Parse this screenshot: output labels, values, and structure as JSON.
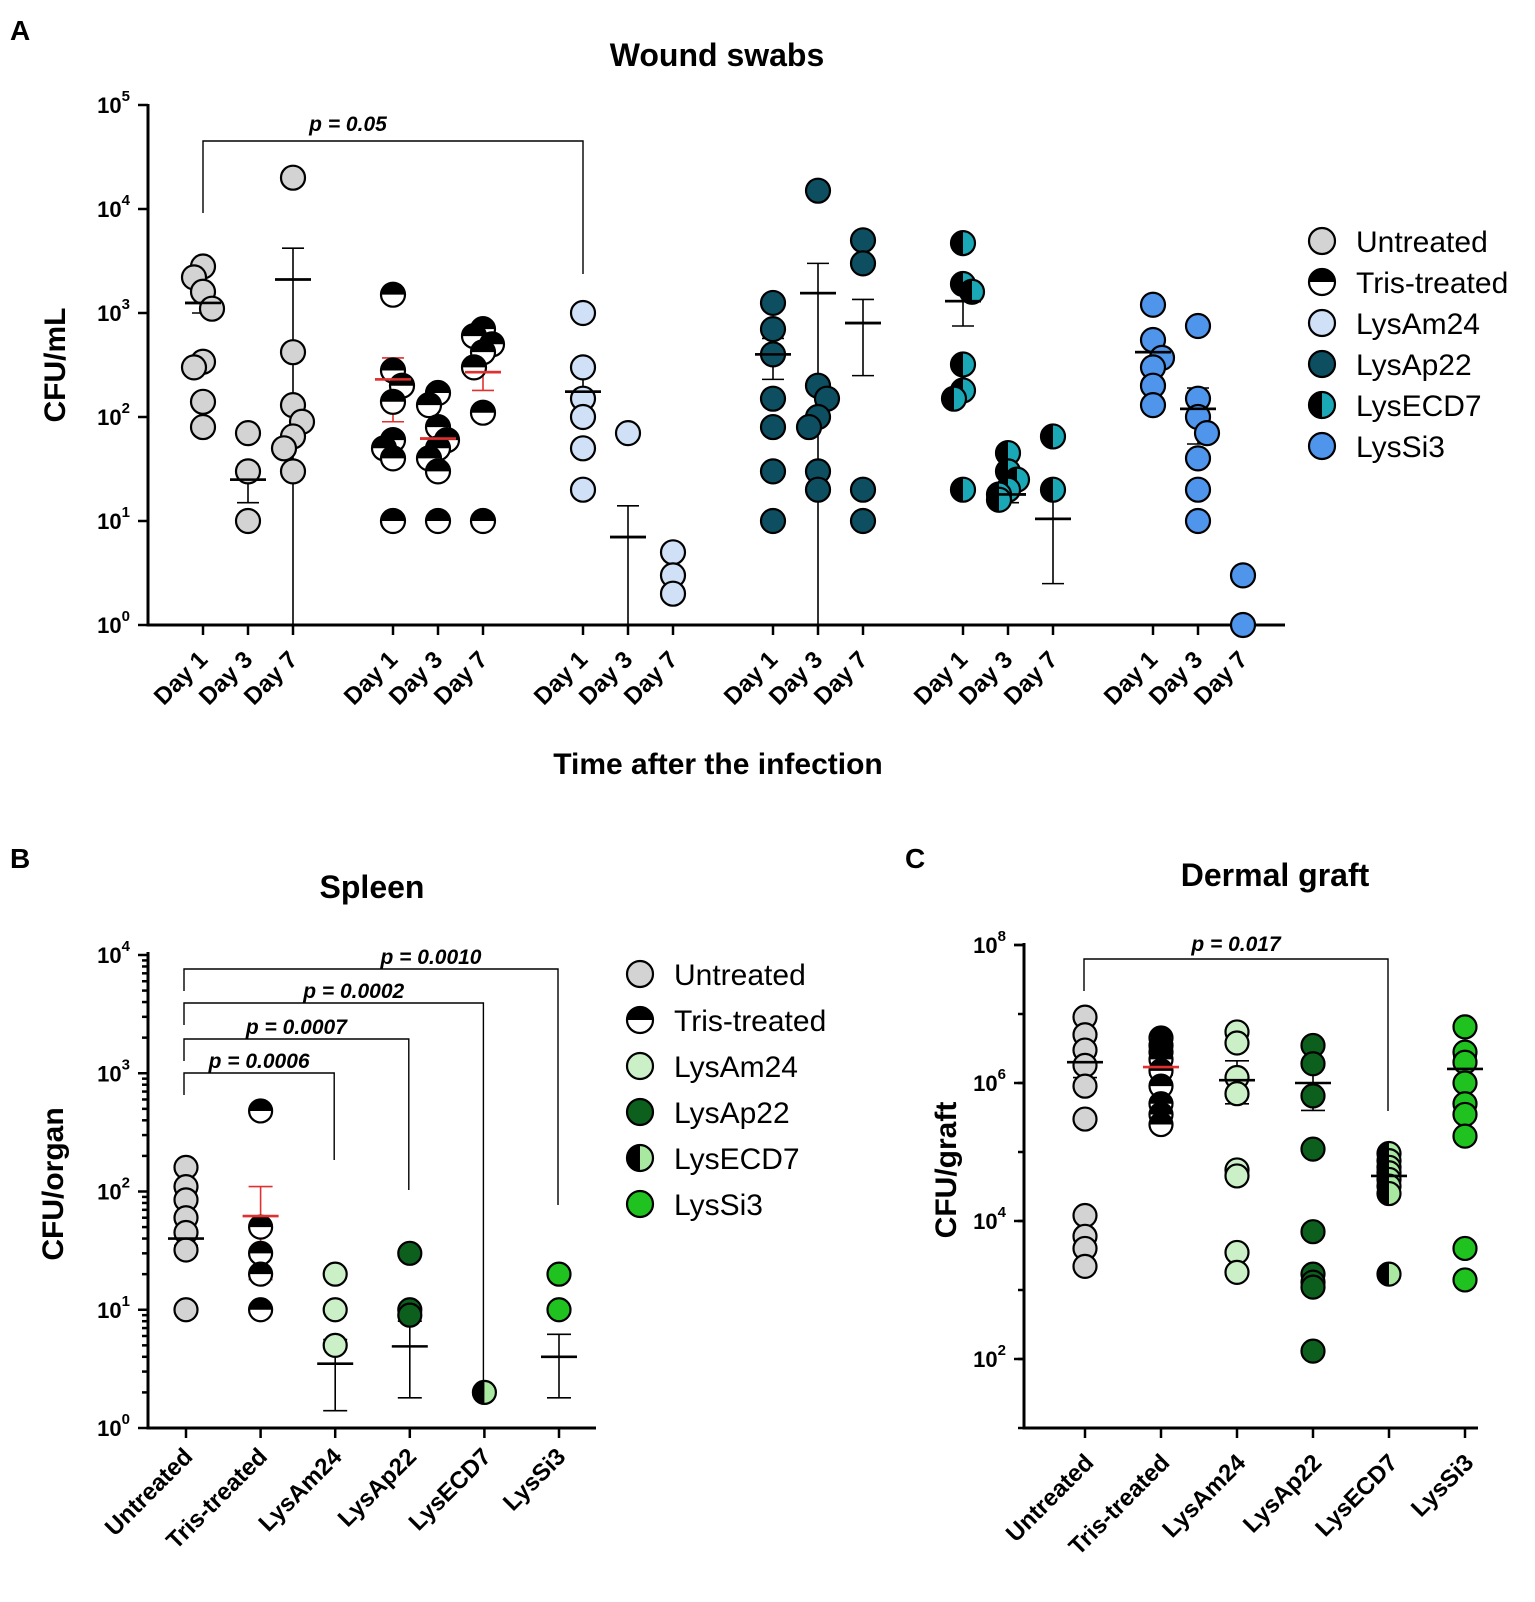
{
  "chart_data": [
    {
      "panel": "A",
      "type": "scatter",
      "title": "Wound swabs",
      "xlabel": "Time after the infection",
      "ylabel": "CFU/mL",
      "yscale": "log",
      "ylim": [
        1,
        100000
      ],
      "yticks": [
        {
          "base": "10",
          "exp": "0"
        },
        {
          "base": "10",
          "exp": "1"
        },
        {
          "base": "10",
          "exp": "2"
        },
        {
          "base": "10",
          "exp": "3"
        },
        {
          "base": "10",
          "exp": "4"
        },
        {
          "base": "10",
          "exp": "5"
        }
      ],
      "legend": [
        "Untreated",
        "Tris-treated",
        "LysAm24",
        "LysAp22",
        "LysECD7",
        "LysSi3"
      ],
      "legend_position": "right",
      "groups": [
        {
          "name": "Untreated",
          "fill": "#d3d3d3",
          "style": "solid",
          "error_color": "#000000",
          "days": [
            {
              "label": "Day 1",
              "points": [
                2800,
                2200,
                1600,
                1100,
                340,
                300,
                140,
                80
              ],
              "mean": 1250,
              "err": [
                1000,
                1600
              ]
            },
            {
              "label": "Day 3",
              "points": [
                70,
                30,
                10
              ],
              "mean": 25,
              "err": [
                15,
                35
              ]
            },
            {
              "label": "Day 7",
              "points": [
                20000,
                420,
                130,
                90,
                65,
                50,
                30
              ],
              "mean": 2100,
              "err": 4200
            }
          ]
        },
        {
          "name": "Tris-treated",
          "fill": "#000000",
          "style": "half-top",
          "error_color": "#e03030",
          "days": [
            {
              "label": "Day 1",
              "points": [
                1500,
                280,
                200,
                140,
                60,
                50,
                40,
                10
              ],
              "mean": 230,
              "err": [
                90,
                370
              ]
            },
            {
              "label": "Day 3",
              "points": [
                170,
                130,
                80,
                60,
                50,
                40,
                30,
                10
              ],
              "mean": 62,
              "err": [
                45,
                80
              ]
            },
            {
              "label": "Day 7",
              "points": [
                700,
                600,
                500,
                420,
                300,
                110,
                10
              ],
              "mean": 270,
              "err": [
                180,
                370
              ]
            }
          ]
        },
        {
          "name": "LysAm24",
          "fill": "#cfe0f7",
          "style": "solid",
          "error_color": "#000000",
          "days": [
            {
              "label": "Day 1",
              "points": [
                1000,
                300,
                150,
                100,
                50,
                20
              ],
              "mean": 175,
              "err": [
                90,
                260
              ]
            },
            {
              "label": "Day 3",
              "points": [
                70
              ],
              "mean": 7,
              "err": 14
            },
            {
              "label": "Day 7",
              "points": [
                5,
                3,
                2
              ],
              "mean": null,
              "err": [
                1,
                1
              ]
            }
          ]
        },
        {
          "name": "LysAp22",
          "fill": "#0d4f60",
          "style": "solid",
          "error_color": "#000000",
          "days": [
            {
              "label": "Day 1",
              "points": [
                1250,
                700,
                400,
                150,
                80,
                30,
                10
              ],
              "mean": 400,
              "err": [
                230,
                570
              ]
            },
            {
              "label": "Day 3",
              "points": [
                15000,
                200,
                150,
                100,
                80,
                30,
                20
              ],
              "mean": 1550,
              "err": 3000
            },
            {
              "label": "Day 7",
              "points": [
                5000,
                3000,
                20,
                10
              ],
              "mean": 800,
              "err": [
                250,
                1350
              ]
            }
          ]
        },
        {
          "name": "LysECD7",
          "fill": "#1aa8b6",
          "style": "half-left",
          "error_color": "#000000",
          "days": [
            {
              "label": "Day 1",
              "points": [
                4700,
                1900,
                1600,
                320,
                180,
                150,
                20
              ],
              "mean": 1300,
              "err": [
                750,
                1900
              ]
            },
            {
              "label": "Day 3",
              "points": [
                45,
                30,
                25,
                20,
                18,
                16
              ],
              "mean": 18,
              "err": [
                15,
                22
              ]
            },
            {
              "label": "Day 7",
              "points": [
                65,
                20
              ],
              "mean": 10.5,
              "err": [
                2.5,
                19
              ]
            }
          ]
        },
        {
          "name": "LysSi3",
          "fill": "#4f95ec",
          "style": "solid",
          "error_color": "#000000",
          "days": [
            {
              "label": "Day 1",
              "points": [
                1200,
                550,
                370,
                300,
                200,
                130
              ],
              "mean": 420,
              "err": [
                280,
                560
              ]
            },
            {
              "label": "Day 3",
              "points": [
                750,
                150,
                100,
                70,
                40,
                20,
                10
              ],
              "mean": 120,
              "err": [
                55,
                190
              ]
            },
            {
              "label": "Day 7",
              "points": [
                3,
                1
              ],
              "mean": null,
              "err": null
            }
          ]
        }
      ],
      "comparisons": [
        {
          "from_group": 0,
          "from_day": 0,
          "to_group": 2,
          "to_day": 0,
          "p": "p = 0.05"
        }
      ]
    },
    {
      "panel": "B",
      "type": "scatter",
      "title": "Spleen",
      "xlabel": "",
      "ylabel": "CFU/organ",
      "yscale": "log",
      "ylim": [
        1,
        10000
      ],
      "yticks": [
        {
          "base": "10",
          "exp": "0"
        },
        {
          "base": "10",
          "exp": "1"
        },
        {
          "base": "10",
          "exp": "2"
        },
        {
          "base": "10",
          "exp": "3"
        },
        {
          "base": "10",
          "exp": "4"
        }
      ],
      "categories": [
        "Untreated",
        "Tris-treated",
        "LysAm24",
        "LysAp22",
        "LysECD7",
        "LysSi3"
      ],
      "legend": [
        "Untreated",
        "Tris-treated",
        "LysAm24",
        "LysAp22",
        "LysECD7",
        "LysSi3"
      ],
      "legend_position": "right",
      "series": [
        {
          "name": "Untreated",
          "fill": "#d3d3d3",
          "style": "solid",
          "error_color": "#000000",
          "points": [
            160,
            110,
            85,
            60,
            45,
            32,
            10
          ],
          "mean": 40,
          "err": [
            35,
            46
          ]
        },
        {
          "name": "Tris-treated",
          "fill": "#000000",
          "style": "half-top",
          "error_color": "#e03030",
          "points": [
            480,
            50,
            30,
            20,
            10
          ],
          "mean": 62,
          "err": [
            18,
            110
          ]
        },
        {
          "name": "LysAm24",
          "fill": "#cbf0c7",
          "style": "solid",
          "error_color": "#000000",
          "points": [
            20,
            10,
            5
          ],
          "mean": 3.5,
          "err": [
            1.4,
            5.6
          ]
        },
        {
          "name": "LysAp22",
          "fill": "#0c5f1c",
          "style": "solid",
          "error_color": "#000000",
          "points": [
            30,
            10,
            9
          ],
          "mean": 4.9,
          "err": [
            1.8,
            8
          ]
        },
        {
          "name": "LysECD7",
          "fill": "#a8e8a0",
          "style": "half-left",
          "error_color": "#000000",
          "points": [
            2
          ],
          "mean": null,
          "err": null
        },
        {
          "name": "LysSi3",
          "fill": "#1fc21f",
          "style": "solid",
          "error_color": "#000000",
          "points": [
            20,
            10
          ],
          "mean": 4,
          "err": [
            1.8,
            6.2
          ]
        }
      ],
      "comparisons": [
        {
          "from": 0,
          "to": 2,
          "p": "p = 0.0006"
        },
        {
          "from": 0,
          "to": 3,
          "p": "p = 0.0007"
        },
        {
          "from": 0,
          "to": 4,
          "p": "p = 0.0002"
        },
        {
          "from": 0,
          "to": 5,
          "p": "p = 0.0010"
        }
      ]
    },
    {
      "panel": "C",
      "type": "scatter",
      "title": "Dermal graft",
      "xlabel": "",
      "ylabel": "CFU/graft",
      "yscale": "log",
      "ylim": [
        10,
        100000000
      ],
      "yticks": [
        {
          "base": "10",
          "exp": "2"
        },
        {
          "base": "10",
          "exp": "4"
        },
        {
          "base": "10",
          "exp": "6"
        },
        {
          "base": "10",
          "exp": "8"
        }
      ],
      "categories": [
        "Untreated",
        "Tris-treated",
        "LysAm24",
        "LysAp22",
        "LysECD7",
        "LysSi3"
      ],
      "series": [
        {
          "name": "Untreated",
          "fill": "#d3d3d3",
          "style": "solid",
          "error_color": "#000000",
          "points": [
            9000000,
            5000000,
            3000000,
            1800000,
            900000,
            300000,
            12000,
            6000,
            4000,
            2200
          ],
          "mean": 2000000,
          "err": [
            1200000,
            2800000
          ]
        },
        {
          "name": "Tris-treated",
          "fill": "#000000",
          "style": "half-top",
          "error_color": "#e03030",
          "points": [
            4500000,
            3500000,
            2800000,
            2200000,
            1500000,
            900000,
            500000,
            350000,
            250000
          ],
          "mean": 1700000,
          "err": [
            1300000,
            2300000
          ]
        },
        {
          "name": "LysAm24",
          "fill": "#cbf0c7",
          "style": "solid",
          "error_color": "#000000",
          "points": [
            5500000,
            3800000,
            1200000,
            700000,
            55000,
            45000,
            3500,
            1800
          ],
          "mean": 1100000,
          "err": [
            500000,
            2100000
          ]
        },
        {
          "name": "LysAp22",
          "fill": "#0c5f1c",
          "style": "solid",
          "error_color": "#000000",
          "points": [
            3500000,
            1900000,
            650000,
            110000,
            7000,
            1700,
            1300,
            1100,
            130
          ],
          "mean": 1000000,
          "err": [
            400000,
            1700000
          ]
        },
        {
          "name": "LysECD7",
          "fill": "#a8e8a0",
          "style": "half-left",
          "error_color": "#000000",
          "points": [
            95000,
            75000,
            60000,
            50000,
            40000,
            32000,
            25000,
            1700
          ],
          "mean": 45000,
          "err": [
            32000,
            58000
          ]
        },
        {
          "name": "LysSi3",
          "fill": "#1fc21f",
          "style": "solid",
          "error_color": "#000000",
          "points": [
            6500000,
            2800000,
            2000000,
            1000000,
            500000,
            350000,
            170000,
            4000,
            1400
          ],
          "mean": 1600000,
          "err": [
            900000,
            2400000
          ]
        }
      ],
      "comparisons": [
        {
          "from": 0,
          "to": 4,
          "p": "p = 0.017"
        }
      ]
    }
  ]
}
